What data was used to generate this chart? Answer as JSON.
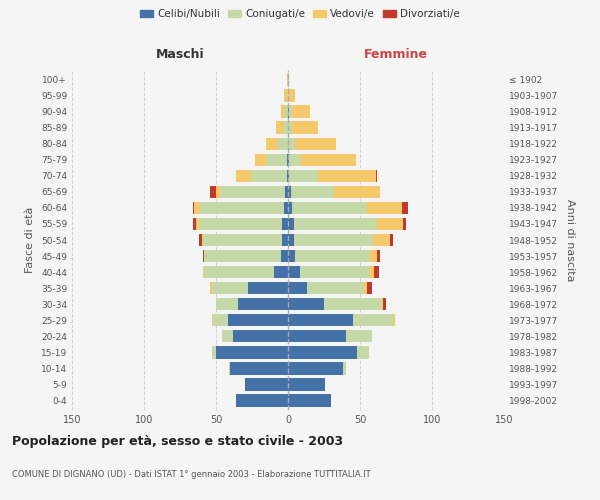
{
  "age_groups": [
    "0-4",
    "5-9",
    "10-14",
    "15-19",
    "20-24",
    "25-29",
    "30-34",
    "35-39",
    "40-44",
    "45-49",
    "50-54",
    "55-59",
    "60-64",
    "65-69",
    "70-74",
    "75-79",
    "80-84",
    "85-89",
    "90-94",
    "95-99",
    "100+"
  ],
  "birth_years": [
    "1998-2002",
    "1993-1997",
    "1988-1992",
    "1983-1987",
    "1978-1982",
    "1973-1977",
    "1968-1972",
    "1963-1967",
    "1958-1962",
    "1953-1957",
    "1948-1952",
    "1943-1947",
    "1938-1942",
    "1933-1937",
    "1928-1932",
    "1923-1927",
    "1918-1922",
    "1913-1917",
    "1908-1912",
    "1903-1907",
    "≤ 1902"
  ],
  "maschi": {
    "celibi": [
      36,
      30,
      40,
      50,
      38,
      42,
      35,
      28,
      10,
      5,
      4,
      4,
      3,
      2,
      1,
      1,
      0,
      0,
      0,
      0,
      0
    ],
    "coniugati": [
      0,
      0,
      1,
      3,
      8,
      10,
      15,
      25,
      48,
      53,
      55,
      58,
      58,
      45,
      25,
      14,
      7,
      3,
      2,
      1,
      0
    ],
    "vedovi": [
      0,
      0,
      0,
      0,
      0,
      1,
      0,
      1,
      1,
      0,
      1,
      2,
      4,
      3,
      10,
      8,
      8,
      5,
      3,
      2,
      1
    ],
    "divorziati": [
      0,
      0,
      0,
      0,
      0,
      0,
      0,
      0,
      0,
      1,
      2,
      2,
      1,
      4,
      0,
      0,
      0,
      0,
      0,
      0,
      0
    ]
  },
  "femmine": {
    "nubili": [
      30,
      26,
      38,
      48,
      40,
      45,
      25,
      13,
      8,
      5,
      4,
      4,
      3,
      2,
      1,
      1,
      0,
      0,
      1,
      0,
      0
    ],
    "coniugate": [
      0,
      0,
      2,
      8,
      18,
      28,
      40,
      40,
      48,
      52,
      55,
      58,
      52,
      30,
      20,
      8,
      5,
      3,
      2,
      1,
      0
    ],
    "vedove": [
      0,
      0,
      0,
      0,
      0,
      1,
      1,
      2,
      4,
      5,
      12,
      18,
      24,
      32,
      40,
      38,
      28,
      18,
      12,
      4,
      1
    ],
    "divorziate": [
      0,
      0,
      0,
      0,
      0,
      0,
      2,
      3,
      3,
      2,
      2,
      2,
      4,
      0,
      1,
      0,
      0,
      0,
      0,
      0,
      0
    ]
  },
  "colors": {
    "celibi": "#4472a8",
    "coniugati": "#c5d8a8",
    "vedovi": "#f5c96a",
    "divorziati": "#c0392b"
  },
  "title": "Popolazione per età, sesso e stato civile - 2003",
  "subtitle": "COMUNE DI DIGNANO (UD) - Dati ISTAT 1° gennaio 2003 - Elaborazione TUTTITALIA.IT",
  "xlabel_left": "Maschi",
  "xlabel_right": "Femmine",
  "ylabel_left": "Fasce di età",
  "ylabel_right": "Anni di nascita",
  "xlim": 150,
  "background_color": "#f5f5f5",
  "plot_bg": "#f5f5f5",
  "grid_color": "#cccccc"
}
